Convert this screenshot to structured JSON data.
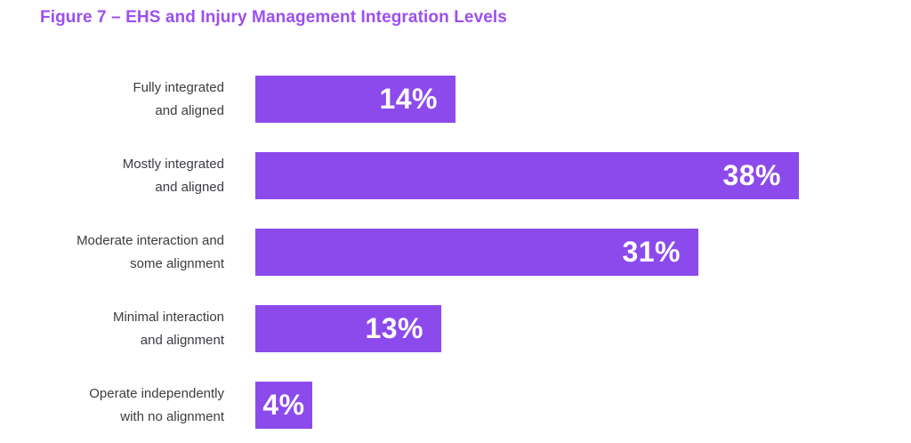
{
  "page": {
    "background": "#ffffff"
  },
  "figure": {
    "title": "Figure 7 – EHS and Injury Management Integration Levels",
    "title_color": "#9C4FF2"
  },
  "chart_data": {
    "type": "bar",
    "orientation": "horizontal",
    "title": "Figure 7 – EHS and Injury Management Integration Levels",
    "categories": [
      "Fully integrated and aligned",
      "Mostly integrated and aligned",
      "Moderate interaction and some alignment",
      "Minimal interaction and alignment",
      "Operate independently with no alignment"
    ],
    "category_label_lines": [
      [
        "Fully integrated",
        "and aligned"
      ],
      [
        "Mostly integrated",
        "and aligned"
      ],
      [
        "Moderate interaction and",
        "some alignment"
      ],
      [
        "Minimal interaction",
        "and alignment"
      ],
      [
        "Operate independently",
        "with no alignment"
      ]
    ],
    "values": [
      14,
      38,
      31,
      13,
      4
    ],
    "value_labels": [
      "14%",
      "38%",
      "31%",
      "13%",
      "4%"
    ],
    "unit": "%",
    "xlim": [
      0,
      40
    ],
    "grid": false,
    "legend": false,
    "bar_color": "#8C4AEC",
    "value_label_color": "#FFFFFF",
    "category_label_color": "#3C3C42"
  }
}
